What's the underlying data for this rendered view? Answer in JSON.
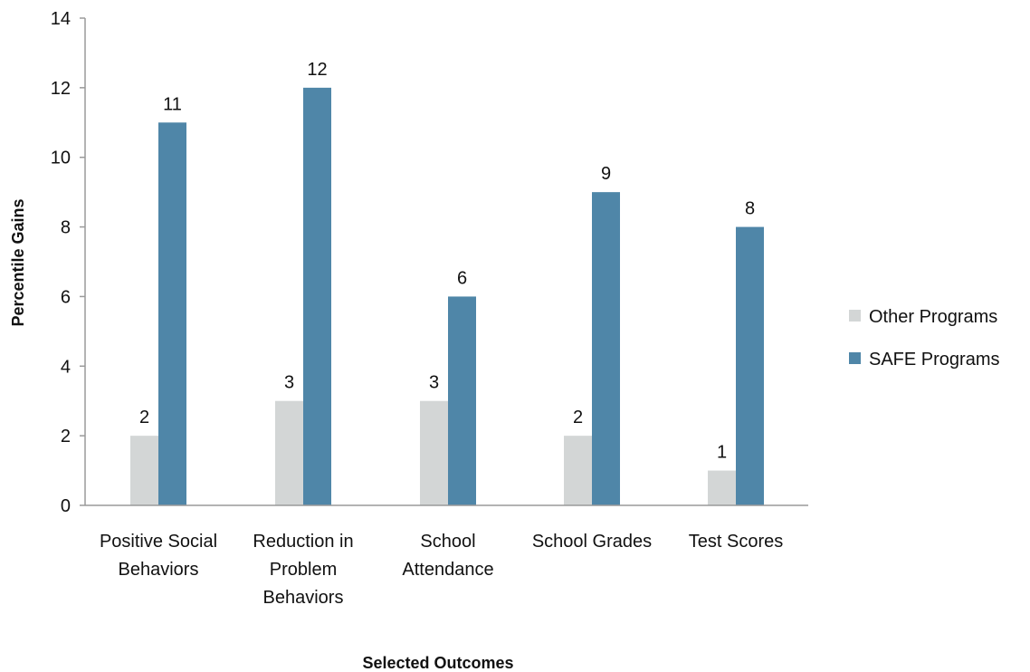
{
  "chart_data": {
    "type": "bar",
    "title": "",
    "xlabel": "Selected Outcomes",
    "ylabel": "Percentile Gains",
    "ylim": [
      0,
      14
    ],
    "yticks": [
      0,
      2,
      4,
      6,
      8,
      10,
      12,
      14
    ],
    "grid": false,
    "legend_position": "right",
    "categories": [
      [
        "Positive Social",
        "Behaviors"
      ],
      [
        "Reduction in",
        "Problem",
        "Behaviors"
      ],
      [
        "School",
        "Attendance"
      ],
      [
        "School Grades"
      ],
      [
        "Test Scores"
      ]
    ],
    "series": [
      {
        "name": "Other Programs",
        "color": "#d3d6d6",
        "values": [
          2,
          3,
          3,
          2,
          1
        ]
      },
      {
        "name": "SAFE Programs",
        "color": "#4f86a8",
        "values": [
          11,
          12,
          6,
          9,
          8
        ]
      }
    ]
  }
}
